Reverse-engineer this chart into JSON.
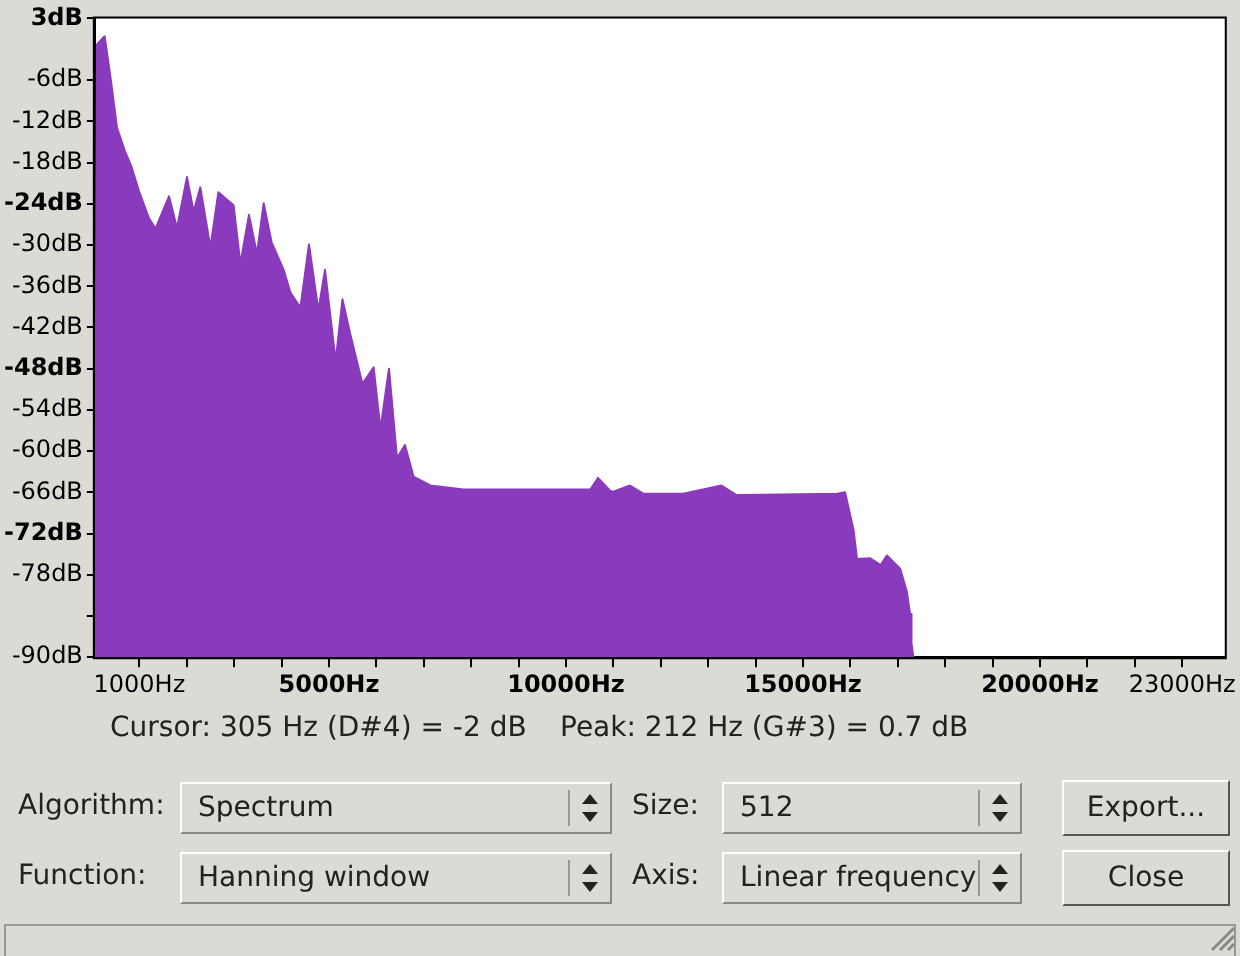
{
  "chart_data": {
    "type": "area",
    "x": [
      60,
      105,
      267,
      405,
      527,
      688,
      829,
      998,
      1203,
      1340,
      1625,
      1793,
      2004,
      2144,
      2286,
      2498,
      2667,
      2987,
      3131,
      3312,
      3481,
      3622,
      3790,
      4043,
      4186,
      4397,
      4578,
      4776,
      4916,
      5141,
      5284,
      5453,
      5706,
      5942,
      6086,
      6266,
      6435,
      6603,
      6784,
      7139,
      7840,
      9250,
      10515,
      10675,
      10937,
      11000,
      11350,
      11630,
      12475,
      13280,
      13600,
      15720,
      15890,
      16070,
      16140,
      16420,
      16640,
      16770,
      17050,
      17190,
      17260,
      17290,
      17330
    ],
    "series": [
      {
        "color": "#8a3abd",
        "values": [
          -90,
          -0.8,
          0.4,
          -6.3,
          -12.9,
          -16.2,
          -18.5,
          -22.3,
          -26.1,
          -27.6,
          -22.9,
          -27.5,
          -20.1,
          -25.1,
          -21.6,
          -30.3,
          -22.3,
          -24.2,
          -32.7,
          -25.6,
          -31.3,
          -23.9,
          -29.6,
          -33.6,
          -36.9,
          -39.1,
          -29.9,
          -39.5,
          -33.6,
          -46.9,
          -37.9,
          -43.1,
          -50.2,
          -47.8,
          -56.8,
          -48.0,
          -61.0,
          -59.1,
          -63.7,
          -65.0,
          -65.6,
          -65.6,
          -65.6,
          -63.9,
          -65.8,
          -65.9,
          -65.0,
          -66.2,
          -66.2,
          -65.0,
          -66.4,
          -66.2,
          -66.0,
          -71.6,
          -75.7,
          -75.6,
          -76.6,
          -75.2,
          -77.1,
          -80.4,
          -83.7,
          -88.0,
          -90
        ]
      }
    ],
    "xlim": [
      60,
      23900
    ],
    "xticks": [
      {
        "value": 1000,
        "label": "1000Hz"
      },
      {
        "value": 2000,
        "label": null
      },
      {
        "value": 3000,
        "label": null
      },
      {
        "value": 4000,
        "label": null
      },
      {
        "value": 5000,
        "label": "5000Hz"
      },
      {
        "value": 6000,
        "label": null
      },
      {
        "value": 7000,
        "label": null
      },
      {
        "value": 8000,
        "label": null
      },
      {
        "value": 9000,
        "label": null
      },
      {
        "value": 10000,
        "label": "10000Hz"
      },
      {
        "value": 11000,
        "label": null
      },
      {
        "value": 12000,
        "label": null
      },
      {
        "value": 13000,
        "label": null
      },
      {
        "value": 14000,
        "label": null
      },
      {
        "value": 15000,
        "label": "15000Hz"
      },
      {
        "value": 16000,
        "label": null
      },
      {
        "value": 17000,
        "label": null
      },
      {
        "value": 18000,
        "label": null
      },
      {
        "value": 19000,
        "label": null
      },
      {
        "value": 20000,
        "label": "20000Hz"
      },
      {
        "value": 21000,
        "label": null
      },
      {
        "value": 22000,
        "label": null
      },
      {
        "value": 23000,
        "label": "23000Hz"
      }
    ],
    "ylim": [
      -90,
      3
    ],
    "yticks": [
      {
        "value": 3,
        "label": "3dB"
      },
      {
        "value": -6,
        "label": "-6dB"
      },
      {
        "value": -12,
        "label": "-12dB"
      },
      {
        "value": -18,
        "label": "-18dB"
      },
      {
        "value": -24,
        "label": "-24dB"
      },
      {
        "value": -30,
        "label": "-30dB"
      },
      {
        "value": -36,
        "label": "-36dB"
      },
      {
        "value": -42,
        "label": "-42dB"
      },
      {
        "value": -48,
        "label": "-48dB"
      },
      {
        "value": -54,
        "label": "-54dB"
      },
      {
        "value": -60,
        "label": "-60dB"
      },
      {
        "value": -66,
        "label": "-66dB"
      },
      {
        "value": -72,
        "label": "-72dB"
      },
      {
        "value": -78,
        "label": "-78dB"
      },
      {
        "value": -84,
        "label": null
      },
      {
        "value": -90,
        "label": "-90dB"
      }
    ],
    "annotations": [
      "Cursor: 305 Hz (D#4) = -2 dB",
      "Peak: 212 Hz (G#3) = 0.7 dB",
      "Algorithm:",
      "Spectrum",
      "Size:",
      "512",
      "Export...",
      "Function:",
      "Hanning window",
      "Axis:",
      "Linear frequency",
      "Close"
    ]
  }
}
